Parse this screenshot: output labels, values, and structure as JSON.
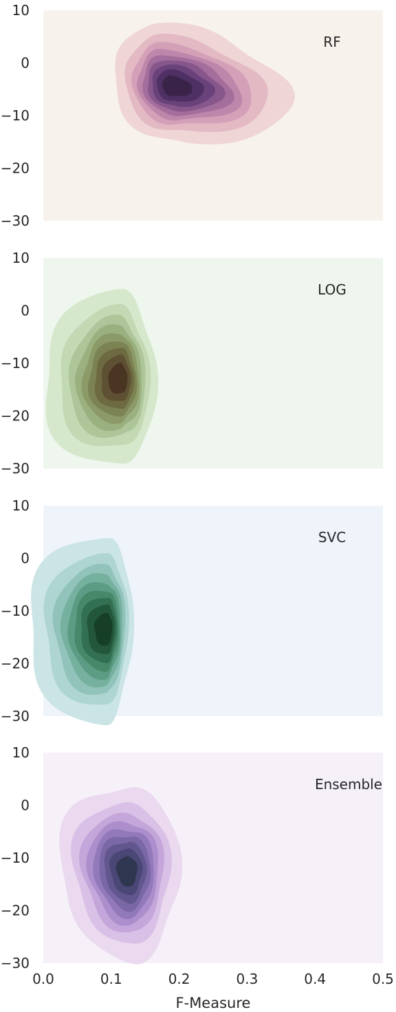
{
  "chart_data": [
    {
      "type": "kde",
      "label": "RF",
      "background": "#f7f2ec",
      "colors": [
        "#efd5d6",
        "#e3b9c4",
        "#d3a0b8",
        "#bd86ab",
        "#a46e9c",
        "#87578c",
        "#6a427b",
        "#4f3064",
        "#3a2349"
      ],
      "xlim": [
        0.0,
        0.5
      ],
      "ylim": [
        -30,
        10
      ],
      "yticks": [
        "10",
        "0",
        "−10",
        "−20",
        "−30"
      ],
      "peak": [
        0.19,
        -4.5
      ],
      "spread": [
        0.055,
        4.8
      ],
      "skew": 1.3
    },
    {
      "type": "kde",
      "label": "LOG",
      "background": "#eef6ee",
      "colors": [
        "#d5e8cc",
        "#c2d9b3",
        "#adc599",
        "#9ab07f",
        "#8b9a67",
        "#7c8352",
        "#6d6a41",
        "#5e5032",
        "#4a3522"
      ],
      "xlim": [
        0.0,
        0.5
      ],
      "ylim": [
        -30,
        10
      ],
      "yticks": [
        "10",
        "0",
        "−10",
        "−20",
        "−30"
      ],
      "peak": [
        0.115,
        -13.0
      ],
      "spread": [
        0.035,
        7.0
      ],
      "skew": 0.6
    },
    {
      "type": "kde",
      "label": "SVC",
      "background": "#eff4fb",
      "colors": [
        "#cbe4e6",
        "#aed5d2",
        "#91c3ba",
        "#76b09f",
        "#5d9c84",
        "#47886a",
        "#336f52",
        "#23573c",
        "#173f27"
      ],
      "xlim": [
        0.0,
        0.5
      ],
      "ylim": [
        -30,
        10
      ],
      "yticks": [
        "10",
        "0",
        "−10",
        "−20",
        "−30"
      ],
      "peak": [
        0.095,
        -13.5
      ],
      "spread": [
        0.03,
        7.5
      ],
      "skew": 0.5
    },
    {
      "type": "kde",
      "label": "Ensemble",
      "background": "#f6f0f8",
      "colors": [
        "#ead9ef",
        "#d9c0e6",
        "#c4a6da",
        "#ab8ecb",
        "#9279ba",
        "#7a67a5",
        "#61578e",
        "#4a4676",
        "#2f3650"
      ],
      "xlim": [
        0.0,
        0.5
      ],
      "ylim": [
        -30,
        10
      ],
      "yticks": [
        "10",
        "0",
        "−10",
        "−20",
        "−30"
      ],
      "peak": [
        0.125,
        -12.5
      ],
      "spread": [
        0.04,
        7.0
      ],
      "skew": 0.8
    }
  ],
  "x_axis": {
    "label": "F-Measure",
    "ticks": [
      "0.0",
      "0.1",
      "0.2",
      "0.3",
      "0.4",
      "0.5"
    ]
  }
}
